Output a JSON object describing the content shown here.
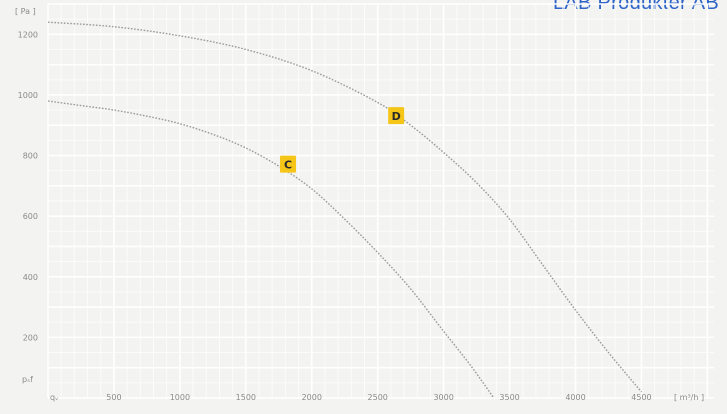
{
  "brand": "LAB Produkter AB",
  "chart_data": {
    "type": "line",
    "title": "",
    "y_unit": "[ Pa ]",
    "x_unit": "[ m³/h ]",
    "x_origin_label": "qᵥ",
    "y_origin_label": "pₛf",
    "xlim": [
      0,
      5050
    ],
    "ylim": [
      0,
      1300
    ],
    "x_ticks": [
      500,
      1000,
      1500,
      2000,
      2500,
      3000,
      3500,
      4000,
      4500
    ],
    "y_ticks": [
      200,
      400,
      600,
      800,
      1000,
      1200
    ],
    "grid": true,
    "series": [
      {
        "name": "C",
        "label_at": [
          1820,
          770
        ],
        "x": [
          0,
          250,
          500,
          750,
          1000,
          1250,
          1500,
          1750,
          2000,
          2250,
          2500,
          2750,
          3000,
          3200,
          3380
        ],
        "y": [
          980,
          965,
          950,
          930,
          905,
          870,
          825,
          765,
          690,
          590,
          480,
          360,
          220,
          110,
          0
        ]
      },
      {
        "name": "D",
        "label_at": [
          2640,
          930
        ],
        "x": [
          0,
          500,
          1000,
          1500,
          2000,
          2500,
          2750,
          3000,
          3250,
          3500,
          3750,
          4000,
          4250,
          4500
        ],
        "y": [
          1240,
          1225,
          1195,
          1150,
          1080,
          975,
          900,
          810,
          710,
          590,
          440,
          290,
          150,
          20
        ]
      }
    ]
  }
}
